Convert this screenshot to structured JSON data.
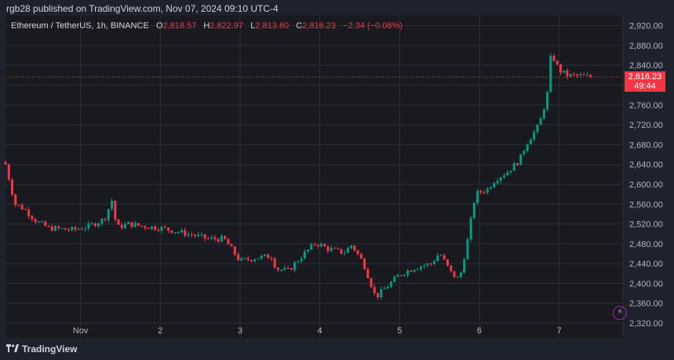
{
  "header": {
    "published_by": "rgb28 published on TradingView.com, Nov 07, 2024 09:10 UTC-4"
  },
  "legend": {
    "symbol": "Ethereum / TetherUS, 1h, BINANCE",
    "o_label": "O",
    "o_value": "2,818.57",
    "h_label": "H",
    "h_value": "2,822.97",
    "l_label": "L",
    "l_value": "2,813.60",
    "c_label": "C",
    "c_value": "2,816.23",
    "change": "−2.34 (−0.08%)"
  },
  "price_tag": {
    "price": "2,816.23",
    "countdown": "49:44"
  },
  "footer": {
    "logo_text": "TradingView"
  },
  "icons": {
    "logo": "tradingview-logo-icon",
    "bolt": "lightning-icon"
  },
  "colors": {
    "up": "#089981",
    "down": "#f23645",
    "background": "#181a20",
    "frame": "#1e222d"
  },
  "chart_data": {
    "type": "candlestick",
    "x_axis": {
      "ticks": [
        "Nov",
        "2",
        "3",
        "4",
        "5",
        "6",
        "7"
      ],
      "tick_days": [
        1,
        2,
        3,
        4,
        5,
        6,
        7
      ]
    },
    "y_axis": {
      "range": [
        2290,
        2940
      ],
      "ticks": [
        2320,
        2360,
        2400,
        2440,
        2480,
        2520,
        2560,
        2600,
        2640,
        2680,
        2720,
        2760,
        2800,
        2840,
        2880,
        2920
      ],
      "tick_labels": [
        "2,320.00",
        "2,360.00",
        "2,400.00",
        "2,440.00",
        "2,480.00",
        "2,520.00",
        "2,560.00",
        "2,600.00",
        "2,640.00",
        "2,680.00",
        "2,720.00",
        "2,760.00",
        "2,800.00",
        "2,840.00",
        "2,880.00",
        "2,920.00"
      ]
    },
    "last_price": 2816.23,
    "price_points": [
      [
        0.06,
        2640
      ],
      [
        0.12,
        2600
      ],
      [
        0.18,
        2560
      ],
      [
        0.3,
        2550
      ],
      [
        0.45,
        2525
      ],
      [
        0.6,
        2512
      ],
      [
        0.9,
        2508
      ],
      [
        1.1,
        2515
      ],
      [
        1.3,
        2530
      ],
      [
        1.4,
        2570
      ],
      [
        1.45,
        2512
      ],
      [
        1.6,
        2520
      ],
      [
        1.8,
        2515
      ],
      [
        2.0,
        2512
      ],
      [
        2.2,
        2505
      ],
      [
        2.4,
        2498
      ],
      [
        2.6,
        2490
      ],
      [
        2.8,
        2490
      ],
      [
        3.0,
        2445
      ],
      [
        3.2,
        2452
      ],
      [
        3.4,
        2455
      ],
      [
        3.45,
        2430
      ],
      [
        3.6,
        2425
      ],
      [
        3.8,
        2460
      ],
      [
        3.95,
        2482
      ],
      [
        4.1,
        2470
      ],
      [
        4.3,
        2462
      ],
      [
        4.4,
        2478
      ],
      [
        4.55,
        2440
      ],
      [
        4.7,
        2372
      ],
      [
        4.85,
        2395
      ],
      [
        5.0,
        2418
      ],
      [
        5.2,
        2433
      ],
      [
        5.4,
        2440
      ],
      [
        5.5,
        2462
      ],
      [
        5.65,
        2420
      ],
      [
        5.75,
        2408
      ],
      [
        5.85,
        2485
      ],
      [
        5.95,
        2580
      ],
      [
        6.1,
        2590
      ],
      [
        6.2,
        2610
      ],
      [
        6.35,
        2625
      ],
      [
        6.5,
        2648
      ],
      [
        6.6,
        2685
      ],
      [
        6.75,
        2720
      ],
      [
        6.85,
        2780
      ],
      [
        6.9,
        2865
      ],
      [
        7.0,
        2830
      ],
      [
        7.1,
        2820
      ],
      [
        7.3,
        2818
      ],
      [
        7.4,
        2816.23
      ]
    ]
  }
}
